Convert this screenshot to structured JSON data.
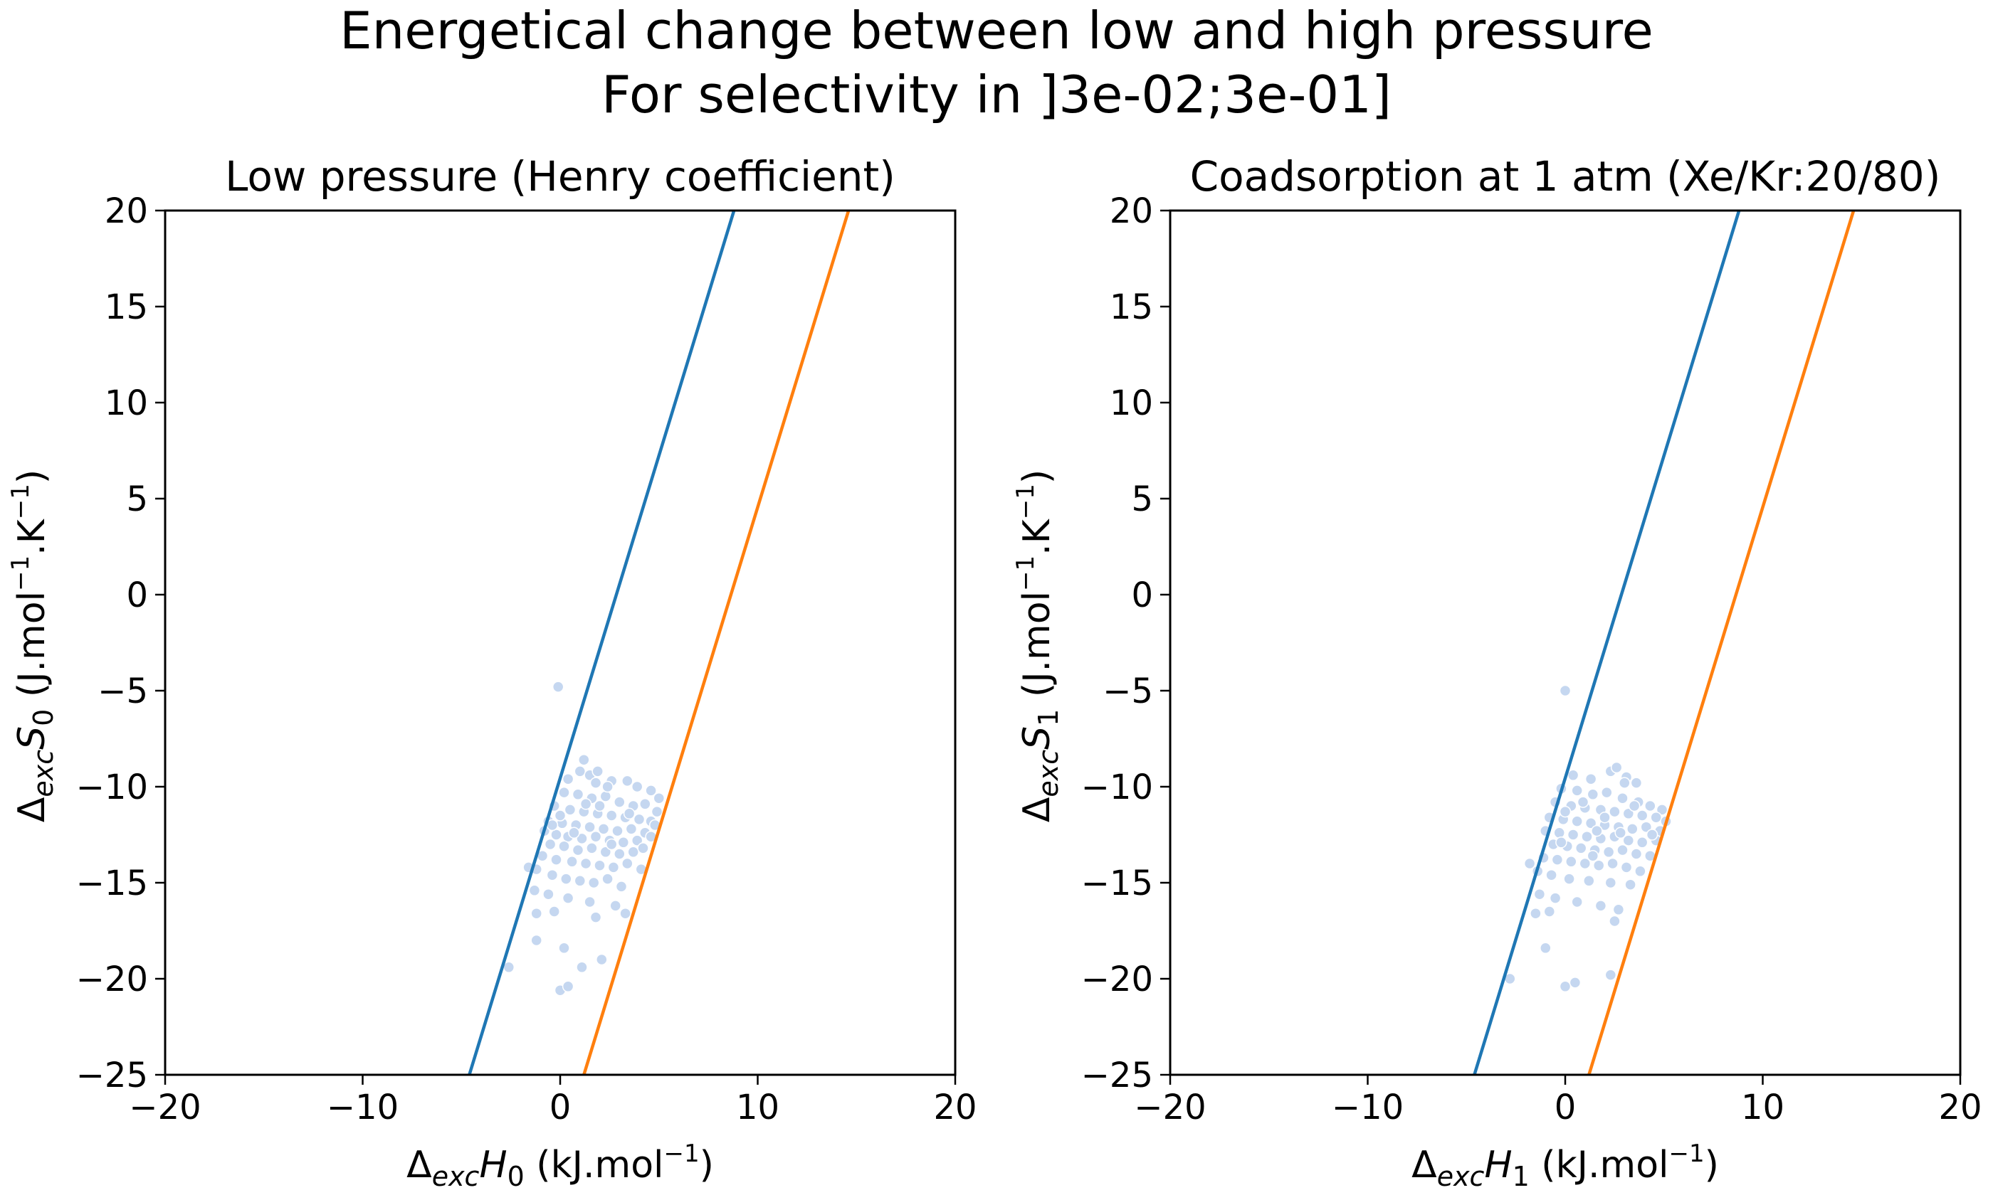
{
  "figure": {
    "title_line1": "Energetical change between low and high pressure",
    "title_line2": "For selectivity in ]3e-02;3e-01]"
  },
  "chart_data": [
    {
      "type": "scatter",
      "title": "Low pressure (Henry coefficient)",
      "xlabel": {
        "delta": "Δ",
        "sub1": "exc",
        "var": "H",
        "sub2": "0",
        "unit": " (kJ.mol",
        "sup": "−1",
        "close": ")"
      },
      "ylabel": {
        "delta": "Δ",
        "sub1": "exc",
        "var": "S",
        "sub2": "0",
        "unit": " (J.mol",
        "sup1": "−1",
        "mid": ".K",
        "sup2": "−1",
        "close": ")"
      },
      "xlim": [
        -20,
        20
      ],
      "ylim": [
        -25,
        20
      ],
      "xticks": [
        -20,
        -10,
        0,
        10,
        20
      ],
      "yticks": [
        -25,
        -20,
        -15,
        -10,
        -5,
        0,
        5,
        10,
        15,
        20
      ],
      "xtick_labels": [
        "−20",
        "−10",
        "0",
        "10",
        "20"
      ],
      "ytick_labels": [
        "−25",
        "−20",
        "−15",
        "−10",
        "−5",
        "0",
        "5",
        "10",
        "15",
        "20"
      ],
      "lines": [
        {
          "color": "#1f77b4",
          "x": [
            -4.6,
            8.8
          ],
          "y": [
            -25,
            20
          ]
        },
        {
          "color": "#ff7f0e",
          "x": [
            1.2,
            14.6
          ],
          "y": [
            -25,
            20
          ]
        }
      ],
      "points_color": "#c5d7f0",
      "points": [
        [
          -0.1,
          -4.8
        ],
        [
          1.2,
          -8.6
        ],
        [
          1.0,
          -9.2
        ],
        [
          1.5,
          -9.4
        ],
        [
          0.4,
          -9.6
        ],
        [
          1.8,
          -9.8
        ],
        [
          2.6,
          -9.7
        ],
        [
          3.4,
          -9.7
        ],
        [
          3.9,
          -10.0
        ],
        [
          4.6,
          -10.2
        ],
        [
          5.0,
          -10.6
        ],
        [
          0.2,
          -10.3
        ],
        [
          0.9,
          -10.4
        ],
        [
          1.6,
          -10.6
        ],
        [
          2.3,
          -10.5
        ],
        [
          3.0,
          -10.8
        ],
        [
          3.7,
          -11.0
        ],
        [
          4.3,
          -10.9
        ],
        [
          4.9,
          -11.3
        ],
        [
          -0.3,
          -11.0
        ],
        [
          0.5,
          -11.2
        ],
        [
          1.2,
          -11.3
        ],
        [
          1.9,
          -11.4
        ],
        [
          2.6,
          -11.5
        ],
        [
          3.3,
          -11.6
        ],
        [
          4.0,
          -11.7
        ],
        [
          4.6,
          -11.8
        ],
        [
          -0.6,
          -11.8
        ],
        [
          0.1,
          -11.9
        ],
        [
          0.8,
          -12.0
        ],
        [
          1.5,
          -12.1
        ],
        [
          2.2,
          -12.2
        ],
        [
          2.9,
          -12.3
        ],
        [
          3.6,
          -12.2
        ],
        [
          4.3,
          -12.4
        ],
        [
          -0.8,
          -12.3
        ],
        [
          -0.2,
          -12.5
        ],
        [
          0.4,
          -12.6
        ],
        [
          1.1,
          -12.7
        ],
        [
          1.8,
          -12.6
        ],
        [
          2.5,
          -12.8
        ],
        [
          3.2,
          -12.9
        ],
        [
          3.9,
          -12.8
        ],
        [
          4.6,
          -12.6
        ],
        [
          -0.5,
          -13.0
        ],
        [
          0.2,
          -13.1
        ],
        [
          0.9,
          -13.3
        ],
        [
          1.6,
          -13.2
        ],
        [
          2.3,
          -13.4
        ],
        [
          3.0,
          -13.5
        ],
        [
          3.7,
          -13.4
        ],
        [
          -0.9,
          -13.6
        ],
        [
          -0.2,
          -13.8
        ],
        [
          0.6,
          -13.9
        ],
        [
          1.3,
          -14.0
        ],
        [
          2.0,
          -14.1
        ],
        [
          2.7,
          -14.2
        ],
        [
          3.4,
          -14.0
        ],
        [
          4.1,
          -14.3
        ],
        [
          -1.2,
          -14.3
        ],
        [
          -0.4,
          -14.6
        ],
        [
          0.3,
          -14.8
        ],
        [
          1.0,
          -14.9
        ],
        [
          1.7,
          -15.0
        ],
        [
          2.4,
          -14.8
        ],
        [
          3.1,
          -15.2
        ],
        [
          -1.3,
          -15.4
        ],
        [
          -0.6,
          -15.6
        ],
        [
          0.4,
          -15.8
        ],
        [
          1.5,
          -16.0
        ],
        [
          2.8,
          -16.2
        ],
        [
          3.3,
          -16.6
        ],
        [
          -1.2,
          -16.6
        ],
        [
          -0.3,
          -16.5
        ],
        [
          1.8,
          -16.8
        ],
        [
          -1.2,
          -18.0
        ],
        [
          0.2,
          -18.4
        ],
        [
          2.1,
          -19.0
        ],
        [
          -2.6,
          -19.4
        ],
        [
          1.1,
          -19.4
        ],
        [
          0.0,
          -20.6
        ],
        [
          0.4,
          -20.4
        ],
        [
          -1.6,
          -14.2
        ],
        [
          2.0,
          -11.0
        ],
        [
          1.3,
          -10.9
        ],
        [
          0.7,
          -12.4
        ],
        [
          3.5,
          -11.4
        ],
        [
          2.6,
          -13.0
        ],
        [
          4.2,
          -13.2
        ],
        [
          1.9,
          -9.2
        ],
        [
          -0.4,
          -12.0
        ],
        [
          4.8,
          -12.0
        ],
        [
          2.4,
          -10.0
        ],
        [
          0.0,
          -11.5
        ]
      ]
    },
    {
      "type": "scatter",
      "title": "Coadsorption at 1 atm (Xe/Kr:20/80)",
      "xlabel": {
        "delta": "Δ",
        "sub1": "exc",
        "var": "H",
        "sub2": "1",
        "unit": " (kJ.mol",
        "sup": "−1",
        "close": ")"
      },
      "ylabel": {
        "delta": "Δ",
        "sub1": "exc",
        "var": "S",
        "sub2": "1",
        "unit": " (J.mol",
        "sup1": "−1",
        "mid": ".K",
        "sup2": "−1",
        "close": ")"
      },
      "xlim": [
        -20,
        20
      ],
      "ylim": [
        -25,
        20
      ],
      "xticks": [
        -20,
        -10,
        0,
        10,
        20
      ],
      "yticks": [
        -25,
        -20,
        -15,
        -10,
        -5,
        0,
        5,
        10,
        15,
        20
      ],
      "xtick_labels": [
        "−20",
        "−10",
        "0",
        "10",
        "20"
      ],
      "ytick_labels": [
        "−25",
        "−20",
        "−15",
        "−10",
        "−5",
        "0",
        "5",
        "10",
        "15",
        "20"
      ],
      "lines": [
        {
          "color": "#1f77b4",
          "x": [
            -4.6,
            8.8
          ],
          "y": [
            -25,
            20
          ]
        },
        {
          "color": "#ff7f0e",
          "x": [
            1.2,
            14.6
          ],
          "y": [
            -25,
            20
          ]
        }
      ],
      "points_color": "#c5d7f0",
      "points": [
        [
          0.0,
          -5.0
        ],
        [
          2.3,
          -9.2
        ],
        [
          2.6,
          -9.0
        ],
        [
          0.4,
          -9.4
        ],
        [
          1.3,
          -9.6
        ],
        [
          3.1,
          -9.5
        ],
        [
          3.6,
          -9.8
        ],
        [
          -0.2,
          -10.1
        ],
        [
          0.6,
          -10.2
        ],
        [
          1.4,
          -10.4
        ],
        [
          2.1,
          -10.3
        ],
        [
          2.9,
          -10.6
        ],
        [
          3.7,
          -10.8
        ],
        [
          4.3,
          -11.0
        ],
        [
          4.9,
          -11.2
        ],
        [
          -0.5,
          -10.8
        ],
        [
          0.3,
          -11.0
        ],
        [
          1.0,
          -11.1
        ],
        [
          1.8,
          -11.2
        ],
        [
          2.5,
          -11.3
        ],
        [
          3.2,
          -11.4
        ],
        [
          3.9,
          -11.5
        ],
        [
          4.6,
          -11.6
        ],
        [
          -0.8,
          -11.6
        ],
        [
          -0.1,
          -11.7
        ],
        [
          0.6,
          -11.8
        ],
        [
          1.3,
          -11.9
        ],
        [
          2.0,
          -12.0
        ],
        [
          2.7,
          -12.1
        ],
        [
          3.4,
          -12.2
        ],
        [
          4.1,
          -12.1
        ],
        [
          4.8,
          -12.3
        ],
        [
          -1.0,
          -12.3
        ],
        [
          -0.3,
          -12.4
        ],
        [
          0.4,
          -12.5
        ],
        [
          1.1,
          -12.6
        ],
        [
          1.8,
          -12.7
        ],
        [
          2.5,
          -12.6
        ],
        [
          3.2,
          -12.8
        ],
        [
          3.9,
          -12.9
        ],
        [
          4.6,
          -12.8
        ],
        [
          -0.6,
          -13.0
        ],
        [
          0.1,
          -13.1
        ],
        [
          0.8,
          -13.2
        ],
        [
          1.5,
          -13.3
        ],
        [
          2.2,
          -13.4
        ],
        [
          2.9,
          -13.3
        ],
        [
          3.6,
          -13.5
        ],
        [
          4.3,
          -13.6
        ],
        [
          -1.1,
          -13.7
        ],
        [
          -0.4,
          -13.8
        ],
        [
          0.3,
          -13.9
        ],
        [
          1.0,
          -14.0
        ],
        [
          1.7,
          -14.1
        ],
        [
          2.4,
          -14.0
        ],
        [
          3.1,
          -14.2
        ],
        [
          3.8,
          -14.4
        ],
        [
          -1.4,
          -14.4
        ],
        [
          -0.7,
          -14.6
        ],
        [
          0.2,
          -14.8
        ],
        [
          1.2,
          -14.9
        ],
        [
          2.3,
          -15.0
        ],
        [
          3.3,
          -15.1
        ],
        [
          -1.3,
          -15.6
        ],
        [
          -0.5,
          -15.8
        ],
        [
          0.6,
          -16.0
        ],
        [
          1.8,
          -16.2
        ],
        [
          2.7,
          -16.4
        ],
        [
          -1.5,
          -16.6
        ],
        [
          -0.8,
          -16.5
        ],
        [
          2.5,
          -17.0
        ],
        [
          -1.0,
          -18.4
        ],
        [
          2.3,
          -19.8
        ],
        [
          -2.8,
          -20.0
        ],
        [
          0.0,
          -20.4
        ],
        [
          0.5,
          -20.2
        ],
        [
          -1.8,
          -14.0
        ],
        [
          2.0,
          -11.6
        ],
        [
          0.9,
          -10.8
        ],
        [
          3.5,
          -11.0
        ],
        [
          1.6,
          -12.3
        ],
        [
          4.4,
          -12.5
        ],
        [
          -0.2,
          -12.9
        ],
        [
          2.8,
          -12.4
        ],
        [
          1.4,
          -13.6
        ],
        [
          5.1,
          -11.8
        ],
        [
          0.0,
          -11.3
        ],
        [
          3.0,
          -9.8
        ]
      ]
    }
  ]
}
